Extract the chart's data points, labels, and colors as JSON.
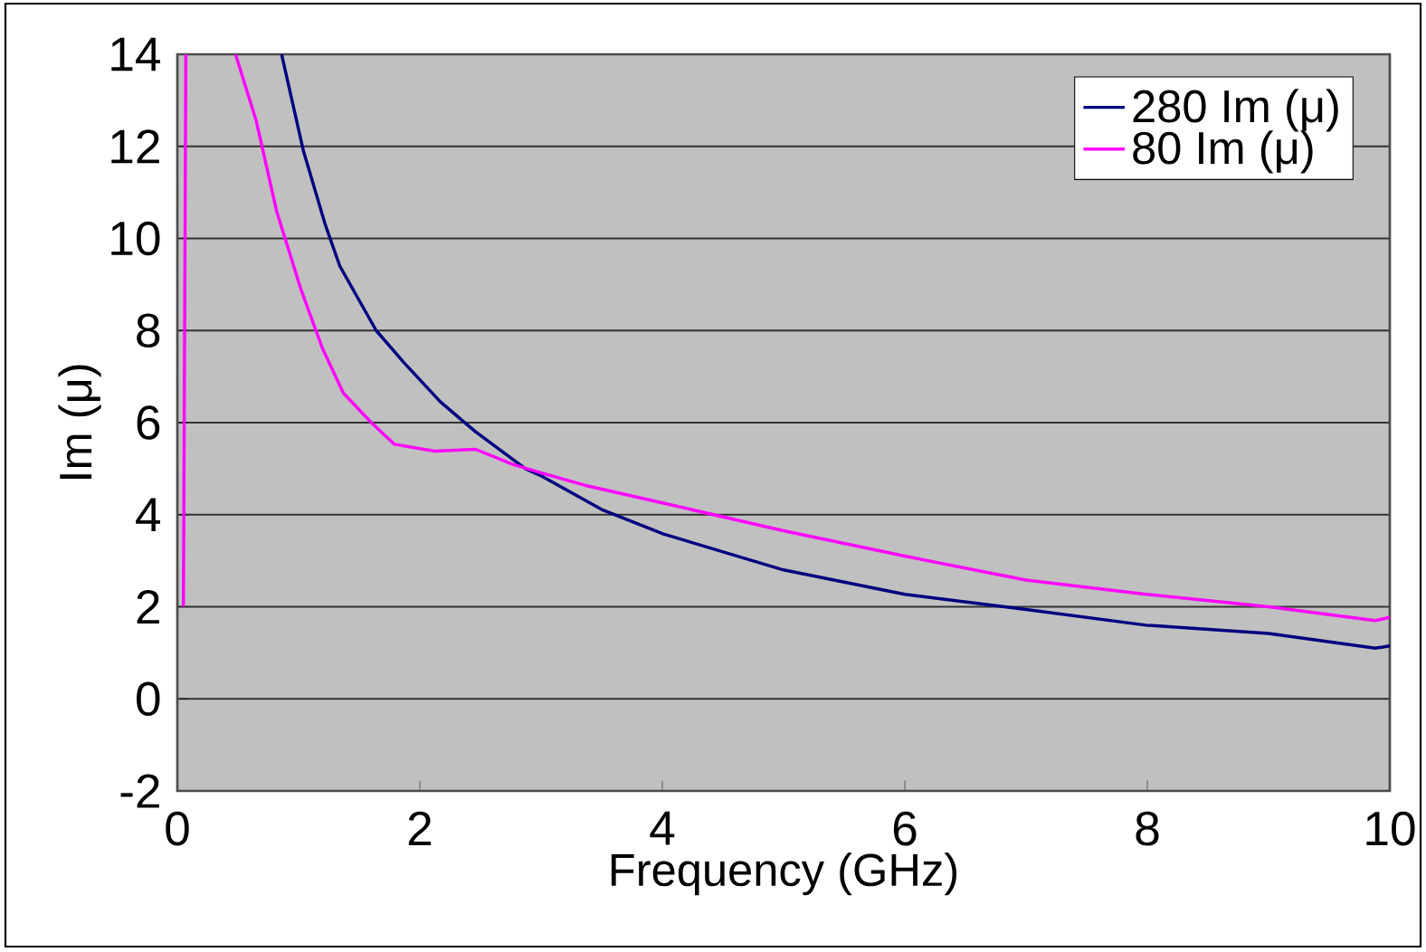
{
  "chart_data": {
    "type": "line",
    "xlabel": "Frequency (GHz)",
    "ylabel": "Im (μ)",
    "xlim": [
      0,
      10
    ],
    "xticks": [
      0,
      2,
      4,
      6,
      8,
      10
    ],
    "ylim": [
      -2,
      14
    ],
    "yticks": [
      -2,
      0,
      2,
      4,
      6,
      8,
      10,
      12,
      14
    ],
    "grid": "y",
    "legend": "top right",
    "line_style": "solid",
    "series": [
      {
        "name": "280 Im (μ)",
        "color": "#000080",
        "x": [
          0.86,
          1.04,
          1.22,
          1.34,
          1.64,
          1.87,
          2.17,
          2.46,
          2.87,
          3.01,
          3.51,
          4.01,
          5.0,
          6.0,
          7.0,
          7.99,
          9.0,
          9.88,
          10
        ],
        "values": [
          14,
          11.9,
          10.3,
          9.4,
          8.0,
          7.3,
          6.45,
          5.8,
          5.0,
          4.83,
          4.1,
          3.58,
          2.8,
          2.27,
          1.94,
          1.6,
          1.42,
          1.1,
          1.15
        ]
      },
      {
        "name": "80 Im (μ)",
        "color": "#ff00ff",
        "x": [
          0.05,
          0.07,
          0.3,
          0.48,
          0.65,
          0.82,
          1.02,
          1.2,
          1.37,
          1.6,
          1.79,
          2.12,
          2.46,
          2.76,
          3.01,
          3.36,
          4.01,
          5.0,
          6.0,
          7.0,
          7.99,
          9.0,
          9.88,
          10
        ],
        "values": [
          2,
          14,
          null,
          14,
          12.56,
          10.58,
          8.89,
          7.59,
          6.64,
          6.0,
          5.53,
          5.38,
          5.42,
          5.1,
          4.9,
          4.64,
          4.25,
          3.65,
          3.1,
          2.58,
          2.27,
          2.0,
          1.7,
          1.77
        ]
      }
    ]
  }
}
